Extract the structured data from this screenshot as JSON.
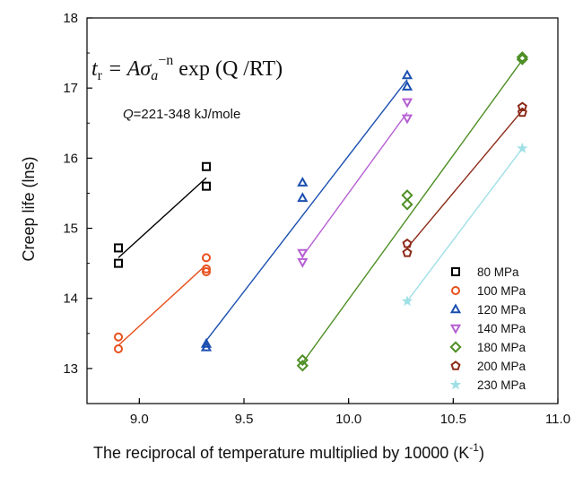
{
  "chart_data": {
    "type": "scatter",
    "title": "",
    "xlabel": "The reciprocal of temperature multiplied by 10000 (K",
    "xlabel_sup": "-1",
    "xlabel_suffix": ")",
    "ylabel": "Creep life (lns)",
    "xlim": [
      8.75,
      11.0
    ],
    "ylim": [
      12.5,
      18.0
    ],
    "xticks": [
      9.0,
      9.5,
      10.0,
      10.5,
      11.0
    ],
    "xtick_labels": [
      "9.0",
      "9.5",
      "10.0",
      "10.5",
      "11.0"
    ],
    "yticks": [
      13,
      14,
      15,
      16,
      17,
      18
    ],
    "ytick_labels": [
      "13",
      "14",
      "15",
      "16",
      "17",
      "18"
    ],
    "grid": false,
    "legend_position": "bottom-right",
    "annotations": {
      "equation": {
        "t": "t",
        "sub_r": "r",
        "rest": " = Aσ",
        "sub_a": "a",
        "sup": "−n",
        "tail": " exp (Q /RT)"
      },
      "q_label": "Q",
      "q_text": "=221-348 kJ/mole"
    },
    "series": [
      {
        "name": "80 MPa",
        "marker": "square",
        "color": "#000000",
        "points": [
          [
            8.9,
            14.72
          ],
          [
            8.9,
            14.5
          ],
          [
            9.32,
            15.88
          ],
          [
            9.32,
            15.6
          ]
        ],
        "fit": [
          [
            8.9,
            14.58
          ],
          [
            9.32,
            15.72
          ]
        ]
      },
      {
        "name": "100 MPa",
        "marker": "circle",
        "color": "#e8501e",
        "points": [
          [
            8.9,
            13.45
          ],
          [
            8.9,
            13.28
          ],
          [
            9.32,
            14.58
          ],
          [
            9.32,
            14.42
          ],
          [
            9.32,
            14.38
          ]
        ],
        "fit": [
          [
            8.9,
            13.33
          ],
          [
            9.32,
            14.48
          ]
        ]
      },
      {
        "name": "120 MPa",
        "marker": "triangle-up",
        "color": "#1a4fb0",
        "points": [
          [
            9.32,
            13.35
          ],
          [
            9.32,
            13.3
          ],
          [
            9.78,
            15.65
          ],
          [
            9.78,
            15.43
          ],
          [
            10.28,
            17.18
          ],
          [
            10.28,
            17.02
          ]
        ],
        "fit": [
          [
            9.32,
            13.4
          ],
          [
            10.28,
            17.12
          ]
        ]
      },
      {
        "name": "140 MPa",
        "marker": "triangle-down",
        "color": "#b65fd3",
        "points": [
          [
            9.78,
            14.65
          ],
          [
            9.78,
            14.52
          ],
          [
            10.28,
            16.8
          ],
          [
            10.28,
            16.57
          ]
        ],
        "fit": [
          [
            9.78,
            14.6
          ],
          [
            10.28,
            16.65
          ]
        ]
      },
      {
        "name": "180 MPa",
        "marker": "diamond",
        "color": "#4e8f25",
        "points": [
          [
            9.78,
            13.12
          ],
          [
            9.78,
            13.04
          ],
          [
            10.28,
            15.47
          ],
          [
            10.28,
            15.34
          ],
          [
            10.83,
            17.44
          ],
          [
            10.83,
            17.41
          ]
        ],
        "fit": [
          [
            9.78,
            13.08
          ],
          [
            10.83,
            17.4
          ]
        ]
      },
      {
        "name": "200 MPa",
        "marker": "pentagon",
        "color": "#8c2a18",
        "points": [
          [
            10.28,
            14.78
          ],
          [
            10.28,
            14.65
          ],
          [
            10.83,
            16.73
          ],
          [
            10.83,
            16.65
          ]
        ],
        "fit": [
          [
            10.28,
            14.72
          ],
          [
            10.83,
            16.68
          ]
        ]
      },
      {
        "name": "230 MPa",
        "marker": "star",
        "color": "#9fe0e6",
        "points": [
          [
            10.28,
            13.96
          ],
          [
            10.83,
            16.14
          ]
        ],
        "fit": [
          [
            10.28,
            13.96
          ],
          [
            10.83,
            16.14
          ]
        ]
      }
    ]
  }
}
